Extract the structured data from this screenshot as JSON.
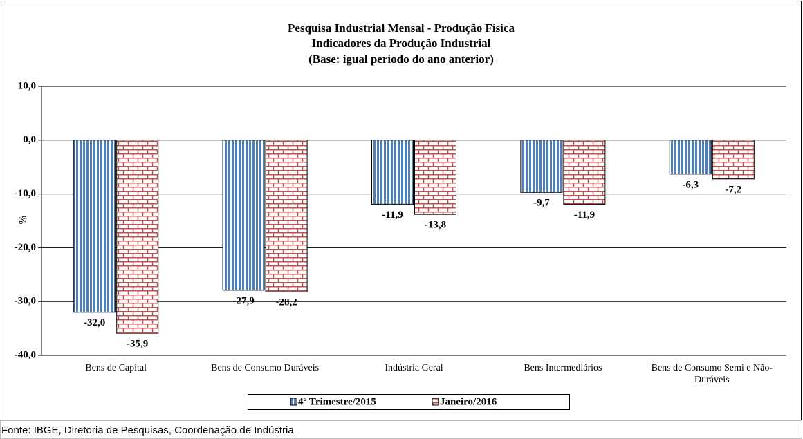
{
  "chart_data": {
    "type": "bar",
    "title": [
      "Pesquisa Industrial Mensal - Produção Física",
      "Indicadores da Produção Industrial",
      "(Base: igual período do ano anterior)"
    ],
    "ylabel": "%",
    "categories": [
      "Bens de Capital",
      "Bens de Consumo Duráveis",
      "Indústria Geral",
      "Bens Intermediários",
      "Bens de Consumo Semi e Não-Duráveis"
    ],
    "series": [
      {
        "name": "4º Trimestre/2015",
        "color": "#4f81bd",
        "values": [
          -32.0,
          -27.9,
          -11.9,
          -9.7,
          -6.3
        ],
        "value_labels": [
          "-32,0",
          "-27,9",
          "-11,9",
          "-9,7",
          "-6,3"
        ]
      },
      {
        "name": "Janeiro/2016",
        "color": "#c0504d",
        "values": [
          -35.9,
          -28.2,
          -13.8,
          -11.9,
          -7.2
        ],
        "value_labels": [
          "-35,9",
          "-28,2",
          "-13,8",
          "-11,9",
          "-7,2"
        ]
      }
    ],
    "ylim": [
      -40,
      10
    ],
    "yticks": [
      {
        "value": 10,
        "label": "10,0"
      },
      {
        "value": 0,
        "label": "0,0"
      },
      {
        "value": -10,
        "label": "-10,0"
      },
      {
        "value": -20,
        "label": "-20,0"
      },
      {
        "value": -30,
        "label": "-30,0"
      },
      {
        "value": -40,
        "label": "-40,0"
      }
    ],
    "grid": true,
    "source": "Fonte: IBGE, Diretoria de Pesquisas, Coordenação de Indústria"
  }
}
